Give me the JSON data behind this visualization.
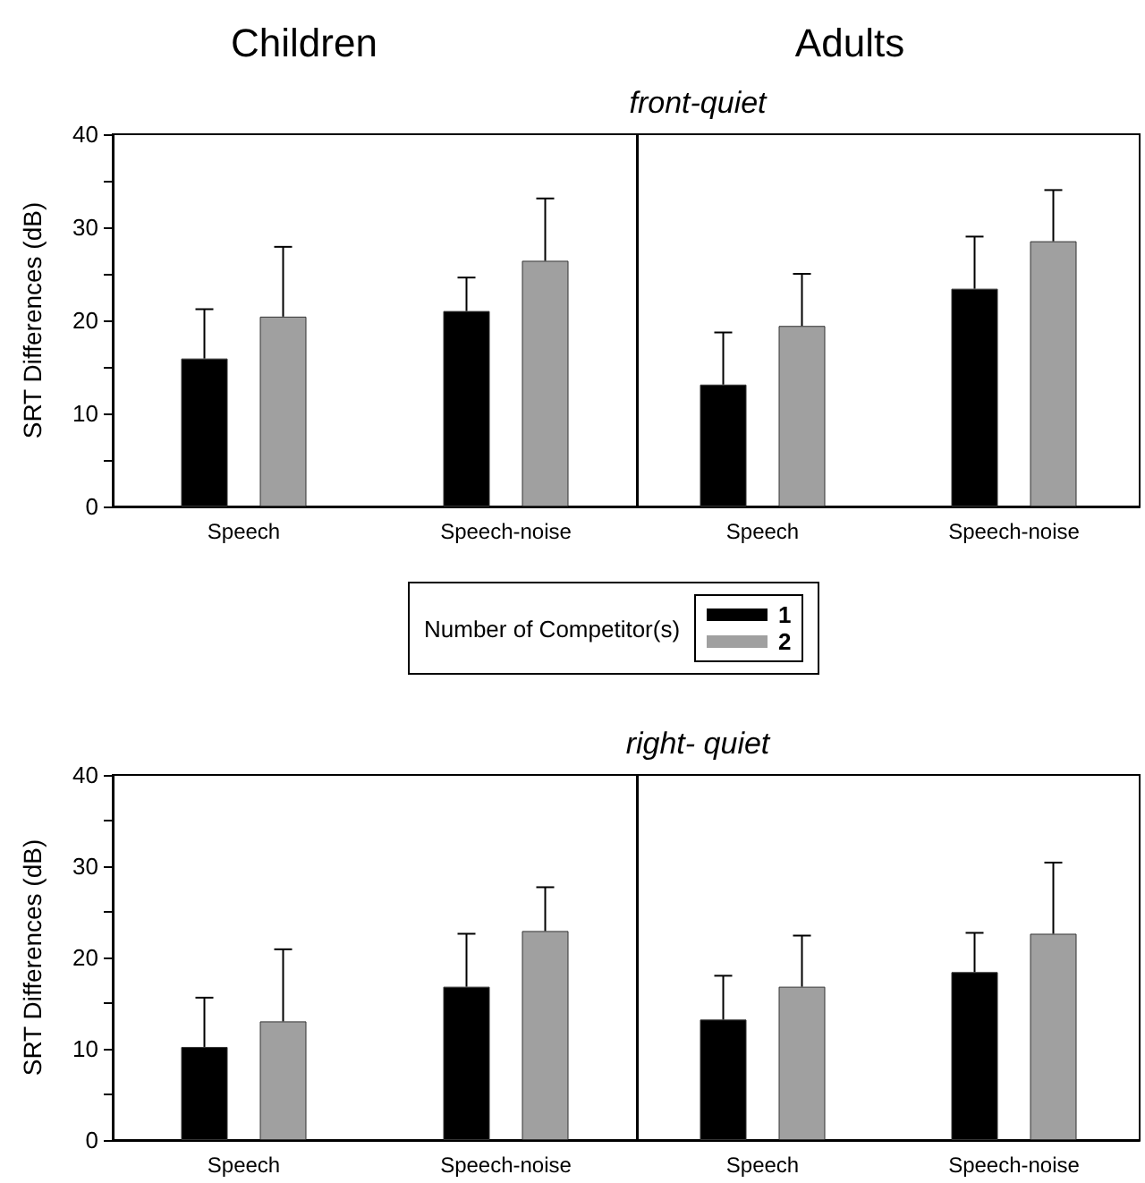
{
  "chart_data": [
    {
      "type": "bar",
      "title": "Children",
      "ylabel": "SRT Differences (dB)",
      "legend_title": "Number of Competitor(s)",
      "legend": "bottom",
      "categories": [
        "Speech",
        "Speech-noise"
      ],
      "ylim": [
        0,
        40
      ],
      "yticks": [
        0,
        {
          "value": 5,
          "label": null
        },
        10,
        {
          "value": 15,
          "label": null
        },
        20,
        {
          "value": 25,
          "label": null
        },
        30,
        {
          "value": 35,
          "label": null
        },
        40
      ],
      "grid": false,
      "series": [
        {
          "name": "1",
          "color": "#000000",
          "values": [
            15.9,
            21.0
          ],
          "errors": [
            [
              15.9,
              21.2
            ],
            [
              21.0,
              24.6
            ]
          ]
        },
        {
          "name": "2",
          "color": "#a0a0a0",
          "values": [
            20.4,
            26.4
          ],
          "errors": [
            [
              20.4,
              27.9
            ],
            [
              26.4,
              33.1
            ]
          ]
        }
      ]
    },
    {
      "type": "bar",
      "title": "Adults",
      "subtitle": "front-quiet",
      "tick_labels": "x",
      "categories": [
        "Speech",
        "Speech-noise"
      ],
      "ylim": [
        0,
        40
      ],
      "yticks": [
        0,
        {
          "value": 5,
          "label": null
        },
        10,
        {
          "value": 15,
          "label": null
        },
        20,
        {
          "value": 25,
          "label": null
        },
        30,
        {
          "value": 35,
          "label": null
        },
        40
      ],
      "grid": false,
      "series": [
        {
          "color": "#000000",
          "values": [
            13.1,
            23.4
          ],
          "errors": [
            [
              13.1,
              18.7
            ],
            [
              23.4,
              29.0
            ]
          ]
        },
        {
          "color": "#a0a0a0",
          "values": [
            19.4,
            28.5
          ],
          "errors": [
            [
              19.4,
              25.0
            ],
            [
              28.5,
              34.0
            ]
          ]
        }
      ]
    },
    {
      "type": "bar",
      "ylabel": "SRT Differences (dB)",
      "categories": [
        "Speech",
        "Speech-noise"
      ],
      "ylim": [
        0,
        40
      ],
      "yticks": [
        0,
        {
          "value": 5,
          "label": null
        },
        10,
        {
          "value": 15,
          "label": null
        },
        20,
        {
          "value": 25,
          "label": null
        },
        30,
        {
          "value": 35,
          "label": null
        },
        40
      ],
      "grid": false,
      "series": [
        {
          "color": "#000000",
          "values": [
            10.2,
            16.8
          ],
          "errors": [
            [
              10.2,
              15.6
            ],
            [
              16.8,
              22.6
            ]
          ]
        },
        {
          "color": "#a0a0a0",
          "values": [
            13.0,
            22.9
          ],
          "errors": [
            [
              13.0,
              20.9
            ],
            [
              22.9,
              27.7
            ]
          ]
        }
      ]
    },
    {
      "type": "bar",
      "subtitle": "right- quiet",
      "tick_labels": "x",
      "categories": [
        "Speech",
        "Speech-noise"
      ],
      "ylim": [
        0,
        40
      ],
      "yticks": [
        0,
        {
          "value": 5,
          "label": null
        },
        10,
        {
          "value": 15,
          "label": null
        },
        20,
        {
          "value": 25,
          "label": null
        },
        30,
        {
          "value": 35,
          "label": null
        },
        40
      ],
      "grid": false,
      "series": [
        {
          "color": "#000000",
          "values": [
            13.2,
            18.4
          ],
          "errors": [
            [
              13.2,
              18.0
            ],
            [
              18.4,
              22.7
            ]
          ]
        },
        {
          "color": "#a0a0a0",
          "values": [
            16.8,
            22.6
          ],
          "errors": [
            [
              16.8,
              22.4
            ],
            [
              22.6,
              30.4
            ]
          ]
        }
      ]
    }
  ]
}
